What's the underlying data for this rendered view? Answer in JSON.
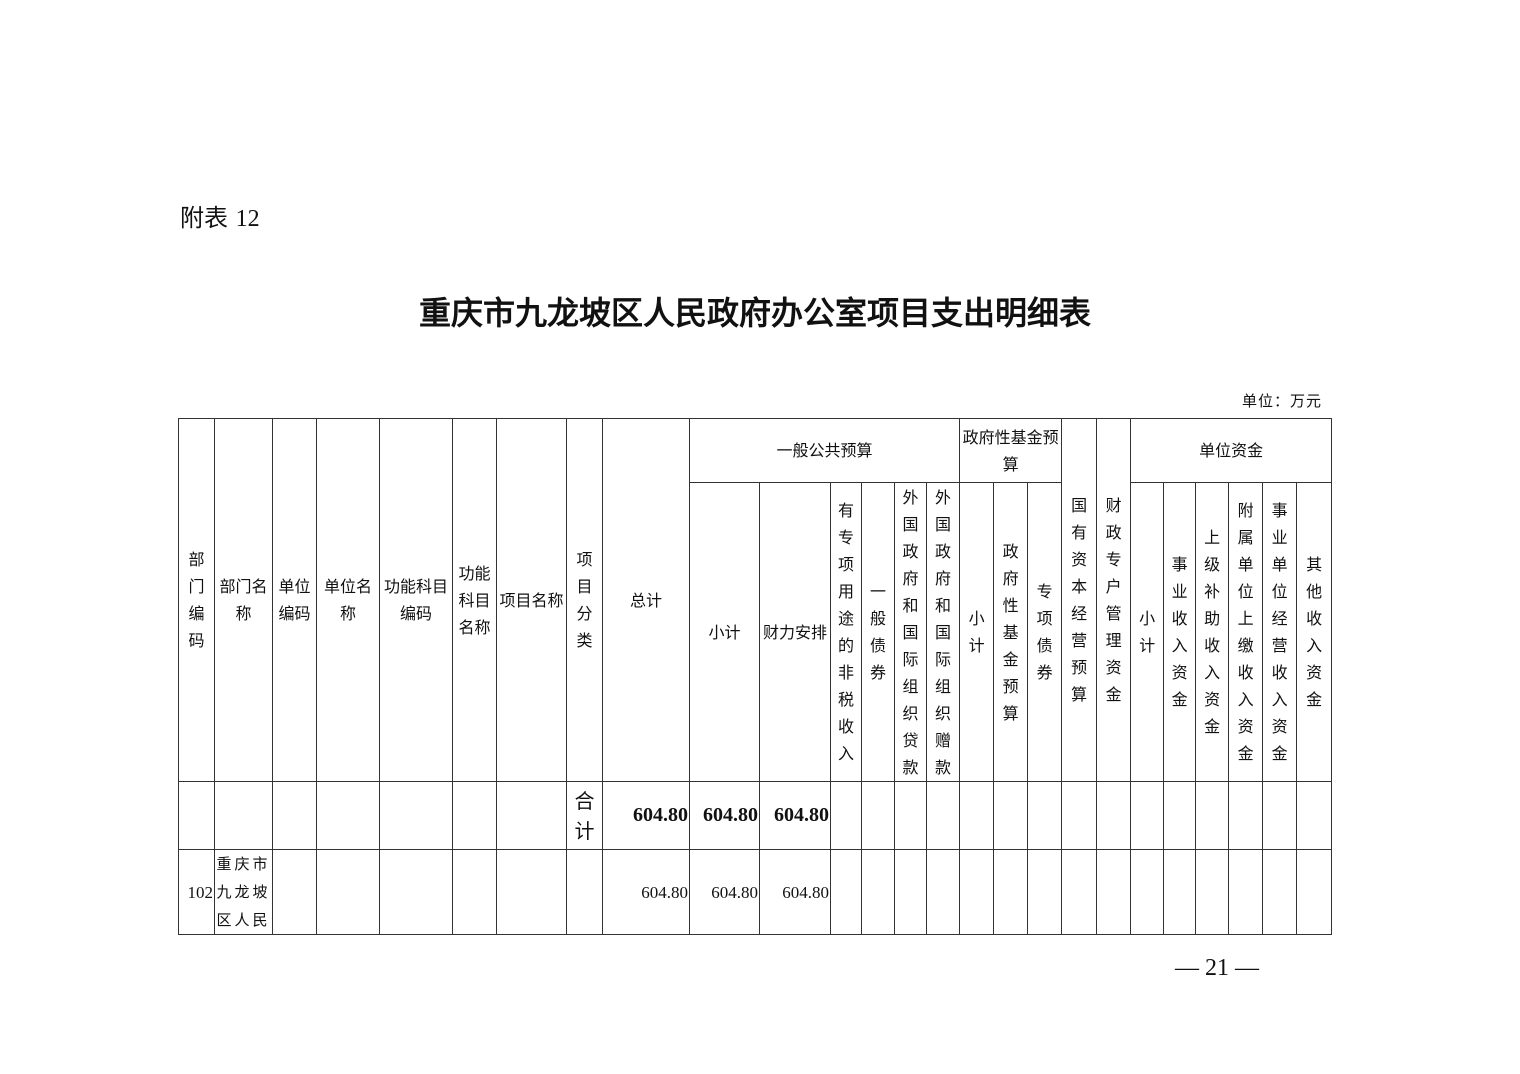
{
  "annex": {
    "label": "附表",
    "number": "12"
  },
  "title": "重庆市九龙坡区人民政府办公室项目支出明细表",
  "unit": "单位：万元",
  "header": {
    "dept_code": "部门编码",
    "dept_name": "部门名称",
    "unit_code": "单位编码",
    "unit_name": "单位名称",
    "func_code": "功能科目编码",
    "func_name": "功能科目名称",
    "project_name": "项目名称",
    "project_category": "项目分类",
    "total": "总计",
    "general_budget": "一般公共预算",
    "gov_fund_budget": "政府性基金预算",
    "state_capital": "国有资本经营预算",
    "fiscal_account": "财政专户管理资金",
    "unit_funds": "单位资金",
    "general_sub": [
      "小计",
      "财力安排",
      "有专项用途的非税收入",
      "一般债券",
      "外国政府和国际组织贷款",
      "外国政府和国际组织赠款"
    ],
    "gov_fund_sub": [
      "小计",
      "政府性基金预算",
      "专项债券"
    ],
    "unit_funds_sub": [
      "小计",
      "事业收入资金",
      "上级补助收入资金",
      "附属单位上缴收入资金",
      "事业单位经营收入资金",
      "其他收入资金"
    ]
  },
  "total_row": {
    "label": "合计",
    "total": "604.80",
    "general_subtotal": "604.80",
    "financial_arrangement": "604.80"
  },
  "rows": [
    {
      "dept_code": "102",
      "dept_name": "重庆市九龙坡区人民",
      "total": "604.80",
      "general_subtotal": "604.80",
      "financial_arrangement": "604.80"
    }
  ],
  "page_number": "— 21 —"
}
